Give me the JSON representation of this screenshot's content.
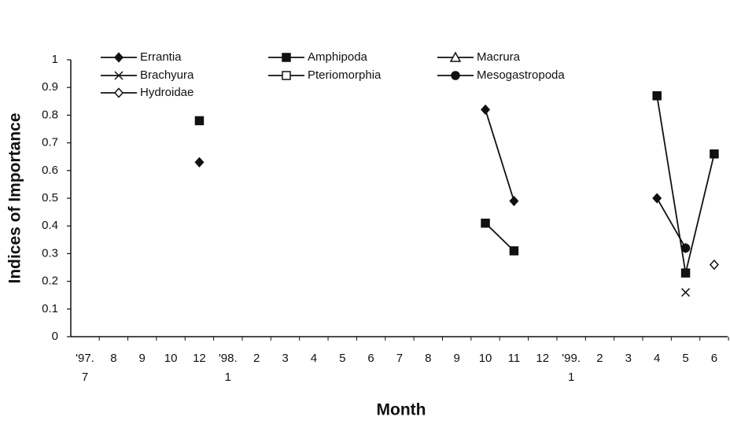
{
  "chart_data": {
    "type": "line",
    "x_label": "Month",
    "y_label": "Indices of Importance",
    "categories": [
      "'97.\n7",
      "8",
      "9",
      "10",
      "12",
      "'98.\n1",
      "2",
      "3",
      "4",
      "5",
      "6",
      "7",
      "8",
      "9",
      "10",
      "11",
      "12",
      "'99.\n1",
      "2",
      "3",
      "4",
      "5",
      "6"
    ],
    "ylim": [
      0,
      1
    ],
    "yticks": [
      0,
      0.1,
      0.2,
      0.3,
      0.4,
      0.5,
      0.6,
      0.7,
      0.8,
      0.9,
      1
    ],
    "series": [
      {
        "name": "Errantia",
        "color": "#111111",
        "marker": "diamond-filled",
        "values": [
          null,
          null,
          null,
          null,
          0.63,
          null,
          null,
          null,
          null,
          null,
          null,
          null,
          null,
          null,
          0.82,
          0.49,
          null,
          null,
          null,
          null,
          0.5,
          0.32,
          null
        ]
      },
      {
        "name": "Amphipoda",
        "color": "#111111",
        "marker": "square-filled",
        "values": [
          null,
          null,
          null,
          null,
          0.78,
          null,
          null,
          null,
          null,
          null,
          null,
          null,
          null,
          null,
          0.41,
          0.31,
          null,
          null,
          null,
          null,
          0.87,
          0.23,
          0.66
        ]
      },
      {
        "name": "Macrura",
        "color": "#111111",
        "marker": "triangle-open",
        "values": [
          null,
          null,
          null,
          null,
          null,
          null,
          null,
          null,
          null,
          null,
          null,
          null,
          null,
          null,
          null,
          null,
          null,
          null,
          null,
          null,
          null,
          null,
          null
        ]
      },
      {
        "name": "Brachyura",
        "color": "#111111",
        "marker": "x",
        "values": [
          null,
          null,
          null,
          null,
          null,
          null,
          null,
          null,
          null,
          null,
          null,
          null,
          null,
          null,
          null,
          null,
          null,
          null,
          null,
          null,
          null,
          0.16,
          null
        ]
      },
      {
        "name": "Pteriomorphia",
        "color": "#111111",
        "marker": "square-open",
        "values": [
          null,
          null,
          null,
          null,
          null,
          null,
          null,
          null,
          null,
          null,
          null,
          null,
          null,
          null,
          null,
          null,
          null,
          null,
          null,
          null,
          null,
          null,
          null
        ]
      },
      {
        "name": "Mesogastropoda",
        "color": "#111111",
        "marker": "circle-filled",
        "values": [
          null,
          null,
          null,
          null,
          null,
          null,
          null,
          null,
          null,
          null,
          null,
          null,
          null,
          null,
          null,
          null,
          null,
          null,
          null,
          null,
          null,
          0.32,
          null
        ]
      },
      {
        "name": "Hydroidae",
        "color": "#111111",
        "marker": "diamond-open",
        "values": [
          null,
          null,
          null,
          null,
          null,
          null,
          null,
          null,
          null,
          null,
          null,
          null,
          null,
          null,
          null,
          null,
          null,
          null,
          null,
          null,
          null,
          null,
          0.26
        ]
      }
    ]
  }
}
